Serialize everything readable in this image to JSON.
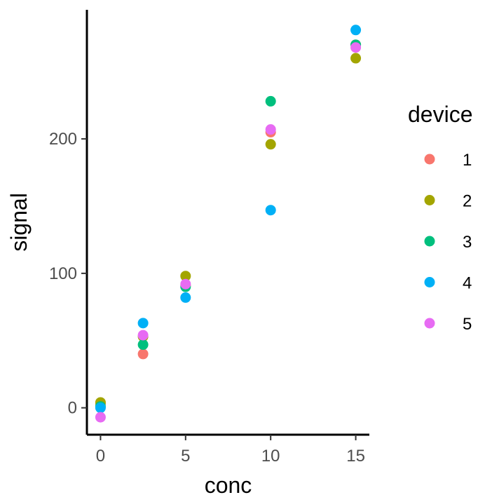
{
  "chart_data": {
    "type": "scatter",
    "title": "",
    "xlabel": "conc",
    "ylabel": "signal",
    "xlim": [
      -0.8,
      15.8
    ],
    "ylim": [
      -20,
      296
    ],
    "x_ticks": [
      0,
      5,
      10,
      15
    ],
    "x_tick_labels": [
      "0",
      "5",
      "10",
      "15"
    ],
    "y_ticks": [
      0,
      100,
      200
    ],
    "y_tick_labels": [
      "0",
      "100",
      "200"
    ],
    "grid": false,
    "legend": {
      "title": "device",
      "position": "right"
    },
    "series": [
      {
        "name": "1",
        "color": "#F8766D",
        "points": [
          [
            0,
            3
          ],
          [
            2.5,
            40
          ],
          [
            5,
            91
          ],
          [
            10,
            205
          ],
          [
            15,
            270
          ]
        ]
      },
      {
        "name": "2",
        "color": "#A3A500",
        "points": [
          [
            0,
            4
          ],
          [
            2.5,
            53
          ],
          [
            5,
            98
          ],
          [
            10,
            196
          ],
          [
            15,
            260
          ]
        ]
      },
      {
        "name": "3",
        "color": "#00BF7D",
        "points": [
          [
            0,
            1
          ],
          [
            2.5,
            47
          ],
          [
            5,
            90
          ],
          [
            10,
            228
          ],
          [
            15,
            270
          ]
        ]
      },
      {
        "name": "4",
        "color": "#00B0F6",
        "points": [
          [
            0,
            0
          ],
          [
            2.5,
            63
          ],
          [
            5,
            82
          ],
          [
            10,
            147
          ],
          [
            15,
            281
          ]
        ]
      },
      {
        "name": "5",
        "color": "#E76BF3",
        "points": [
          [
            0,
            -7
          ],
          [
            2.5,
            54
          ],
          [
            5,
            92
          ],
          [
            10,
            207
          ],
          [
            15,
            268
          ]
        ]
      }
    ]
  }
}
